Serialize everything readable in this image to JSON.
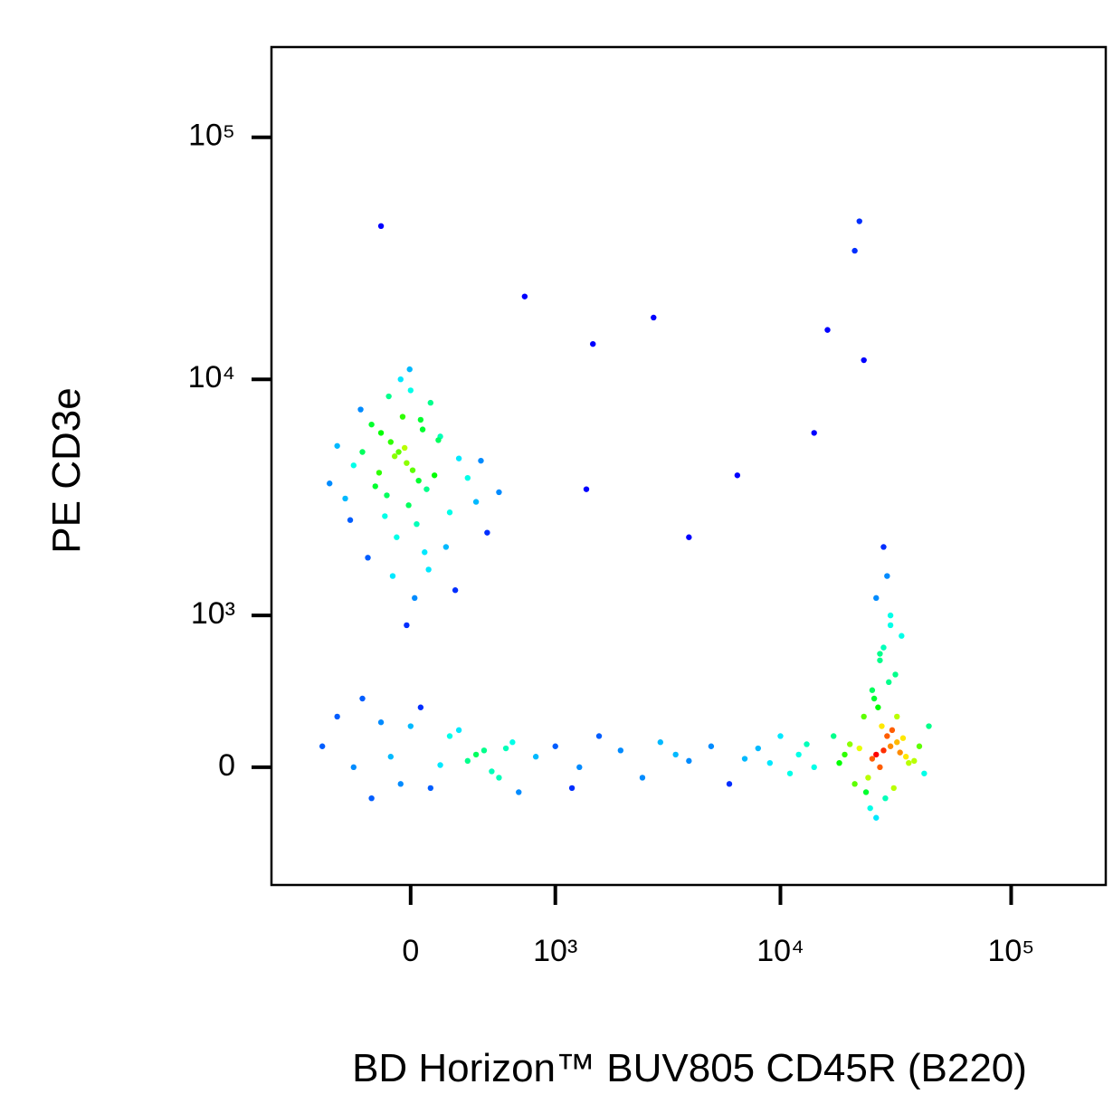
{
  "chart_data": {
    "type": "scatter",
    "xlabel": "BD Horizon™ BUV805 CD45R (B220)",
    "ylabel": "PE CD3e",
    "xscale": "arcsinh",
    "yscale": "arcsinh",
    "xlim": [
      -940,
      257000
    ],
    "ylim": [
      -685,
      236000
    ],
    "xticks": [
      0,
      {
        "value": 1000,
        "label": "10³"
      },
      {
        "value": 10000,
        "label": "10⁴"
      },
      {
        "value": 100000,
        "label": "10⁵"
      }
    ],
    "yticks": [
      0,
      {
        "value": 1000,
        "label": "10³"
      },
      {
        "value": 10000,
        "label": "10⁴"
      },
      {
        "value": 100000,
        "label": "10⁵"
      }
    ],
    "colormap": [
      "#0000ff",
      "#00ffff",
      "#00ff00",
      "#ffff00",
      "#ff0000"
    ],
    "x": [
      -60,
      -20,
      -100,
      10,
      -150,
      40,
      -80,
      -30,
      80,
      -200,
      120,
      -250,
      -10,
      60,
      -120,
      150,
      -300,
      200,
      -40,
      30,
      -180,
      250,
      -350,
      100,
      -70,
      0,
      -220,
      300,
      -400,
      180,
      -90,
      50,
      -130,
      350,
      20,
      -260,
      420,
      -50,
      90,
      -160,
      500,
      -20,
      140,
      -320,
      70,
      -110,
      230,
      -5,
      380,
      -450,
      28000,
      26000,
      30000,
      25000,
      32000,
      27000,
      29000,
      24000,
      33000,
      22000,
      35000,
      27500,
      31000,
      23000,
      36000,
      20000,
      38000,
      28500,
      26500,
      30500,
      21000,
      34000,
      19000,
      40000,
      25500,
      29500,
      18000,
      42000,
      24500,
      31500,
      27000,
      28000,
      30000,
      26000,
      29000,
      25000,
      32000,
      23500,
      33500,
      17000,
      44000,
      28000,
      30000,
      26000,
      27000,
      -500,
      -300,
      -100,
      0,
      100,
      200,
      300,
      400,
      500,
      600,
      -400,
      -200,
      50,
      150,
      250,
      -50,
      350,
      450,
      -150,
      550,
      650,
      -250,
      800,
      1000,
      1300,
      1600,
      2000,
      2500,
      3000,
      3500,
      4000,
      5000,
      6000,
      7000,
      8000,
      9000,
      10000,
      11000,
      12000,
      13000,
      14000,
      1200,
      2800,
      700,
      -150,
      22000,
      21000,
      16000,
      23000,
      1500,
      6500,
      14000,
      1400,
      4000
    ],
    "values": [
      5000,
      4500,
      5500,
      4200,
      6000,
      3800,
      4800,
      5200,
      3500,
      6500,
      4000,
      5000,
      3000,
      6200,
      3300,
      5800,
      4400,
      2800,
      7000,
      2500,
      3600,
      4700,
      3200,
      8000,
      2200,
      9000,
      1800,
      3900,
      5300,
      2000,
      1500,
      6800,
      2700,
      3100,
      1200,
      7500,
      2300,
      10000,
      1600,
      4100,
      3400,
      900,
      5600,
      2600,
      1900,
      8500,
      1300,
      11000,
      4600,
      3700,
      80,
      60,
      100,
      40,
      120,
      0,
      150,
      -50,
      70,
      90,
      50,
      200,
      -100,
      250,
      20,
      110,
      30,
      -150,
      300,
      180,
      -80,
      140,
      60,
      100,
      350,
      450,
      20,
      -30,
      -200,
      500,
      600,
      700,
      900,
      1200,
      1500,
      400,
      250,
      -120,
      800,
      150,
      200,
      2000,
      1000,
      -250,
      650,
      100,
      0,
      50,
      200,
      -100,
      150,
      30,
      80,
      -50,
      120,
      250,
      -150,
      300,
      10,
      180,
      -80,
      60,
      -20,
      220,
      90,
      -120,
      350,
      50,
      100,
      0,
      150,
      80,
      -50,
      120,
      60,
      30,
      100,
      -80,
      40,
      90,
      20,
      150,
      -30,
      60,
      110,
      0,
      -100,
      18000,
      22000,
      43000,
      45000,
      34000,
      16000,
      12000,
      14000,
      4000,
      6000,
      3500,
      2200
    ]
  }
}
